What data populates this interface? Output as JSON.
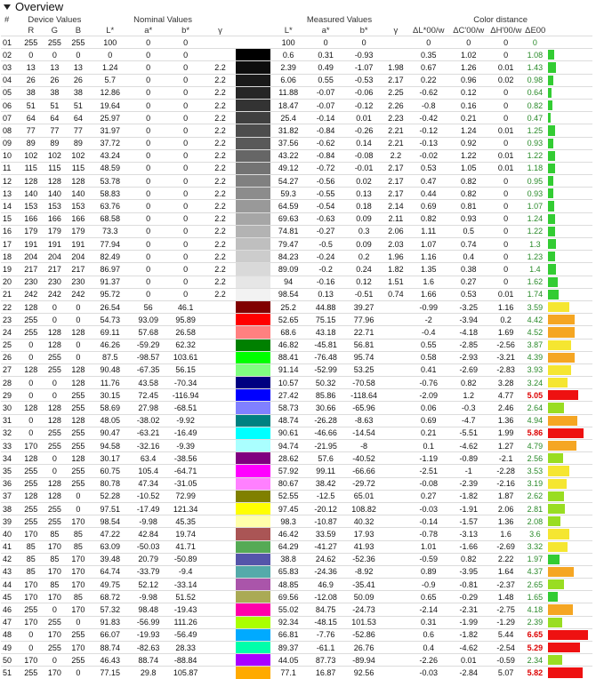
{
  "header": {
    "title": "Overview",
    "icon": "triangle-down-icon"
  },
  "group_headers": {
    "device": "Device Values",
    "nominal": "Nominal Values",
    "measured": "Measured Values",
    "distance": "Color distance"
  },
  "sub_headers": [
    "#",
    "R",
    "G",
    "B",
    "L*",
    "a*",
    "b*",
    "γ",
    "L*",
    "a*",
    "b*",
    "γ",
    "ΔL*00/w",
    "ΔC'00/w",
    "ΔH'00/w",
    "ΔE00"
  ],
  "rows": [
    {
      "n": "01",
      "r": 255,
      "g": 255,
      "b": 255,
      "nl": "100",
      "na": "0",
      "nb": "0",
      "ng": "",
      "ml": "100",
      "ma": "0",
      "mb": "0",
      "mg": "",
      "dl": "0",
      "dc": "0",
      "dh": "0",
      "de": "0",
      "sw": "#ffffff",
      "bc": "#33cc33"
    },
    {
      "n": "02",
      "r": 0,
      "g": 0,
      "b": 0,
      "nl": "0",
      "na": "0",
      "nb": "0",
      "ng": "",
      "ml": "0.6",
      "ma": "0.31",
      "mb": "-0.93",
      "mg": "",
      "dl": "0.35",
      "dc": "1.02",
      "dh": "0",
      "de": "1.08",
      "sw": "#000000",
      "bc": "#33cc33"
    },
    {
      "n": "03",
      "r": 13,
      "g": 13,
      "b": 13,
      "nl": "1.24",
      "na": "0",
      "nb": "0",
      "ng": "2.2",
      "ml": "2.39",
      "ma": "0.49",
      "mb": "-1.07",
      "mg": "1.98",
      "dl": "0.67",
      "dc": "1.26",
      "dh": "0.01",
      "de": "1.43",
      "sw": "#0d0d0d",
      "bc": "#33cc33"
    },
    {
      "n": "04",
      "r": 26,
      "g": 26,
      "b": 26,
      "nl": "5.7",
      "na": "0",
      "nb": "0",
      "ng": "2.2",
      "ml": "6.06",
      "ma": "0.55",
      "mb": "-0.53",
      "mg": "2.17",
      "dl": "0.22",
      "dc": "0.96",
      "dh": "0.02",
      "de": "0.98",
      "sw": "#1a1a1a",
      "bc": "#33cc33"
    },
    {
      "n": "05",
      "r": 38,
      "g": 38,
      "b": 38,
      "nl": "12.86",
      "na": "0",
      "nb": "0",
      "ng": "2.2",
      "ml": "11.88",
      "ma": "-0.07",
      "mb": "-0.06",
      "mg": "2.25",
      "dl": "-0.62",
      "dc": "0.12",
      "dh": "0",
      "de": "0.64",
      "sw": "#262626",
      "bc": "#33cc33"
    },
    {
      "n": "06",
      "r": 51,
      "g": 51,
      "b": 51,
      "nl": "19.64",
      "na": "0",
      "nb": "0",
      "ng": "2.2",
      "ml": "18.47",
      "ma": "-0.07",
      "mb": "-0.12",
      "mg": "2.26",
      "dl": "-0.8",
      "dc": "0.16",
      "dh": "0",
      "de": "0.82",
      "sw": "#333333",
      "bc": "#33cc33"
    },
    {
      "n": "07",
      "r": 64,
      "g": 64,
      "b": 64,
      "nl": "25.97",
      "na": "0",
      "nb": "0",
      "ng": "2.2",
      "ml": "25.4",
      "ma": "-0.14",
      "mb": "0.01",
      "mg": "2.23",
      "dl": "-0.42",
      "dc": "0.21",
      "dh": "0",
      "de": "0.47",
      "sw": "#404040",
      "bc": "#33cc33"
    },
    {
      "n": "08",
      "r": 77,
      "g": 77,
      "b": 77,
      "nl": "31.97",
      "na": "0",
      "nb": "0",
      "ng": "2.2",
      "ml": "31.82",
      "ma": "-0.84",
      "mb": "-0.26",
      "mg": "2.21",
      "dl": "-0.12",
      "dc": "1.24",
      "dh": "0.01",
      "de": "1.25",
      "sw": "#4d4d4d",
      "bc": "#33cc33"
    },
    {
      "n": "09",
      "r": 89,
      "g": 89,
      "b": 89,
      "nl": "37.72",
      "na": "0",
      "nb": "0",
      "ng": "2.2",
      "ml": "37.56",
      "ma": "-0.62",
      "mb": "0.14",
      "mg": "2.21",
      "dl": "-0.13",
      "dc": "0.92",
      "dh": "0",
      "de": "0.93",
      "sw": "#595959",
      "bc": "#33cc33"
    },
    {
      "n": "10",
      "r": 102,
      "g": 102,
      "b": 102,
      "nl": "43.24",
      "na": "0",
      "nb": "0",
      "ng": "2.2",
      "ml": "43.22",
      "ma": "-0.84",
      "mb": "-0.08",
      "mg": "2.2",
      "dl": "-0.02",
      "dc": "1.22",
      "dh": "0.01",
      "de": "1.22",
      "sw": "#666666",
      "bc": "#33cc33"
    },
    {
      "n": "11",
      "r": 115,
      "g": 115,
      "b": 115,
      "nl": "48.59",
      "na": "0",
      "nb": "0",
      "ng": "2.2",
      "ml": "49.12",
      "ma": "-0.72",
      "mb": "-0.01",
      "mg": "2.17",
      "dl": "0.53",
      "dc": "1.05",
      "dh": "0.01",
      "de": "1.18",
      "sw": "#737373",
      "bc": "#33cc33"
    },
    {
      "n": "12",
      "r": 128,
      "g": 128,
      "b": 128,
      "nl": "53.78",
      "na": "0",
      "nb": "0",
      "ng": "2.2",
      "ml": "54.27",
      "ma": "-0.56",
      "mb": "0.02",
      "mg": "2.17",
      "dl": "0.47",
      "dc": "0.82",
      "dh": "0",
      "de": "0.95",
      "sw": "#808080",
      "bc": "#33cc33"
    },
    {
      "n": "13",
      "r": 140,
      "g": 140,
      "b": 140,
      "nl": "58.83",
      "na": "0",
      "nb": "0",
      "ng": "2.2",
      "ml": "59.3",
      "ma": "-0.55",
      "mb": "0.13",
      "mg": "2.17",
      "dl": "0.44",
      "dc": "0.82",
      "dh": "0",
      "de": "0.93",
      "sw": "#8c8c8c",
      "bc": "#33cc33"
    },
    {
      "n": "14",
      "r": 153,
      "g": 153,
      "b": 153,
      "nl": "63.76",
      "na": "0",
      "nb": "0",
      "ng": "2.2",
      "ml": "64.59",
      "ma": "-0.54",
      "mb": "0.18",
      "mg": "2.14",
      "dl": "0.69",
      "dc": "0.81",
      "dh": "0",
      "de": "1.07",
      "sw": "#999999",
      "bc": "#33cc33"
    },
    {
      "n": "15",
      "r": 166,
      "g": 166,
      "b": 166,
      "nl": "68.58",
      "na": "0",
      "nb": "0",
      "ng": "2.2",
      "ml": "69.63",
      "ma": "-0.63",
      "mb": "0.09",
      "mg": "2.11",
      "dl": "0.82",
      "dc": "0.93",
      "dh": "0",
      "de": "1.24",
      "sw": "#a6a6a6",
      "bc": "#33cc33"
    },
    {
      "n": "16",
      "r": 179,
      "g": 179,
      "b": 179,
      "nl": "73.3",
      "na": "0",
      "nb": "0",
      "ng": "2.2",
      "ml": "74.81",
      "ma": "-0.27",
      "mb": "0.3",
      "mg": "2.06",
      "dl": "1.11",
      "dc": "0.5",
      "dh": "0",
      "de": "1.22",
      "sw": "#b3b3b3",
      "bc": "#33cc33"
    },
    {
      "n": "17",
      "r": 191,
      "g": 191,
      "b": 191,
      "nl": "77.94",
      "na": "0",
      "nb": "0",
      "ng": "2.2",
      "ml": "79.47",
      "ma": "-0.5",
      "mb": "0.09",
      "mg": "2.03",
      "dl": "1.07",
      "dc": "0.74",
      "dh": "0",
      "de": "1.3",
      "sw": "#bfbfbf",
      "bc": "#33cc33"
    },
    {
      "n": "18",
      "r": 204,
      "g": 204,
      "b": 204,
      "nl": "82.49",
      "na": "0",
      "nb": "0",
      "ng": "2.2",
      "ml": "84.23",
      "ma": "-0.24",
      "mb": "0.2",
      "mg": "1.96",
      "dl": "1.16",
      "dc": "0.4",
      "dh": "0",
      "de": "1.23",
      "sw": "#cccccc",
      "bc": "#33cc33"
    },
    {
      "n": "19",
      "r": 217,
      "g": 217,
      "b": 217,
      "nl": "86.97",
      "na": "0",
      "nb": "0",
      "ng": "2.2",
      "ml": "89.09",
      "ma": "-0.2",
      "mb": "0.24",
      "mg": "1.82",
      "dl": "1.35",
      "dc": "0.38",
      "dh": "0",
      "de": "1.4",
      "sw": "#d9d9d9",
      "bc": "#33cc33"
    },
    {
      "n": "20",
      "r": 230,
      "g": 230,
      "b": 230,
      "nl": "91.37",
      "na": "0",
      "nb": "0",
      "ng": "2.2",
      "ml": "94",
      "ma": "-0.16",
      "mb": "0.12",
      "mg": "1.51",
      "dl": "1.6",
      "dc": "0.27",
      "dh": "0",
      "de": "1.62",
      "sw": "#e6e6e6",
      "bc": "#33cc33"
    },
    {
      "n": "21",
      "r": 242,
      "g": 242,
      "b": 242,
      "nl": "95.72",
      "na": "0",
      "nb": "0",
      "ng": "2.2",
      "ml": "98.54",
      "ma": "0.13",
      "mb": "-0.51",
      "mg": "0.74",
      "dl": "1.66",
      "dc": "0.53",
      "dh": "0.01",
      "de": "1.74",
      "sw": "#f2f2f2",
      "bc": "#33cc33"
    },
    {
      "n": "22",
      "r": 128,
      "g": 0,
      "b": 0,
      "nl": "26.54",
      "na": "56",
      "nb": "46.1",
      "ng": "",
      "ml": "25.2",
      "ma": "44.88",
      "mb": "39.27",
      "mg": "",
      "dl": "-0.99",
      "dc": "-3.25",
      "dh": "1.16",
      "de": "3.59",
      "sw": "#800000",
      "bc": "#f5e631"
    },
    {
      "n": "23",
      "r": 255,
      "g": 0,
      "b": 0,
      "nl": "54.73",
      "na": "93.09",
      "nb": "95.89",
      "ng": "",
      "ml": "52.65",
      "ma": "75.15",
      "mb": "77.96",
      "mg": "",
      "dl": "-2",
      "dc": "-3.94",
      "dh": "0.2",
      "de": "4.42",
      "sw": "#ff0000",
      "bc": "#f5a623"
    },
    {
      "n": "24",
      "r": 255,
      "g": 128,
      "b": 128,
      "nl": "69.11",
      "na": "57.68",
      "nb": "26.58",
      "ng": "",
      "ml": "68.6",
      "ma": "43.18",
      "mb": "22.71",
      "mg": "",
      "dl": "-0.4",
      "dc": "-4.18",
      "dh": "1.69",
      "de": "4.52",
      "sw": "#ff8080",
      "bc": "#f5a623"
    },
    {
      "n": "25",
      "r": 0,
      "g": 128,
      "b": 0,
      "nl": "46.26",
      "na": "-59.29",
      "nb": "62.32",
      "ng": "",
      "ml": "46.82",
      "ma": "-45.81",
      "mb": "56.81",
      "mg": "",
      "dl": "0.55",
      "dc": "-2.85",
      "dh": "-2.56",
      "de": "3.87",
      "sw": "#008000",
      "bc": "#f5e631"
    },
    {
      "n": "26",
      "r": 0,
      "g": 255,
      "b": 0,
      "nl": "87.5",
      "na": "-98.57",
      "nb": "103.61",
      "ng": "",
      "ml": "88.41",
      "ma": "-76.48",
      "mb": "95.74",
      "mg": "",
      "dl": "0.58",
      "dc": "-2.93",
      "dh": "-3.21",
      "de": "4.39",
      "sw": "#00ff00",
      "bc": "#f5a623"
    },
    {
      "n": "27",
      "r": 128,
      "g": 255,
      "b": 128,
      "nl": "90.48",
      "na": "-67.35",
      "nb": "56.15",
      "ng": "",
      "ml": "91.14",
      "ma": "-52.99",
      "mb": "53.25",
      "mg": "",
      "dl": "0.41",
      "dc": "-2.69",
      "dh": "-2.83",
      "de": "3.93",
      "sw": "#80ff80",
      "bc": "#f5e631"
    },
    {
      "n": "28",
      "r": 0,
      "g": 0,
      "b": 128,
      "nl": "11.76",
      "na": "43.58",
      "nb": "-70.34",
      "ng": "",
      "ml": "10.57",
      "ma": "50.32",
      "mb": "-70.58",
      "mg": "",
      "dl": "-0.76",
      "dc": "0.82",
      "dh": "3.28",
      "de": "3.24",
      "sw": "#000080",
      "bc": "#f5e631"
    },
    {
      "n": "29",
      "r": 0,
      "g": 0,
      "b": 255,
      "nl": "30.15",
      "na": "72.45",
      "nb": "-116.94",
      "ng": "",
      "ml": "27.42",
      "ma": "85.86",
      "mb": "-118.64",
      "mg": "",
      "dl": "-2.09",
      "dc": "1.2",
      "dh": "4.77",
      "de": "5.05",
      "sw": "#0000ff",
      "bc": "#ee1111"
    },
    {
      "n": "30",
      "r": 128,
      "g": 128,
      "b": 255,
      "nl": "58.69",
      "na": "27.98",
      "nb": "-68.51",
      "ng": "",
      "ml": "58.73",
      "ma": "30.66",
      "mb": "-65.96",
      "mg": "",
      "dl": "0.06",
      "dc": "-0.3",
      "dh": "2.46",
      "de": "2.64",
      "sw": "#8080ff",
      "bc": "#99dd22"
    },
    {
      "n": "31",
      "r": 0,
      "g": 128,
      "b": 128,
      "nl": "48.05",
      "na": "-38.02",
      "nb": "-9.92",
      "ng": "",
      "ml": "48.74",
      "ma": "-26.28",
      "mb": "-8.63",
      "mg": "",
      "dl": "0.69",
      "dc": "-4.7",
      "dh": "1.36",
      "de": "4.94",
      "sw": "#008080",
      "bc": "#f5a623"
    },
    {
      "n": "32",
      "r": 0,
      "g": 255,
      "b": 255,
      "nl": "90.47",
      "na": "-63.21",
      "nb": "-16.49",
      "ng": "",
      "ml": "90.61",
      "ma": "-46.66",
      "mb": "-14.54",
      "mg": "",
      "dl": "0.21",
      "dc": "-5.51",
      "dh": "1.99",
      "de": "5.86",
      "sw": "#00ffff",
      "bc": "#ee1111"
    },
    {
      "n": "33",
      "r": 170,
      "g": 255,
      "b": 255,
      "nl": "94.58",
      "na": "-32.16",
      "nb": "-9.39",
      "ng": "",
      "ml": "94.74",
      "ma": "-21.95",
      "mb": "-8",
      "mg": "",
      "dl": "0.1",
      "dc": "-4.62",
      "dh": "1.27",
      "de": "4.79",
      "sw": "#aaffff",
      "bc": "#f5a623"
    },
    {
      "n": "34",
      "r": 128,
      "g": 0,
      "b": 128,
      "nl": "30.17",
      "na": "63.4",
      "nb": "-38.56",
      "ng": "",
      "ml": "28.62",
      "ma": "57.6",
      "mb": "-40.52",
      "mg": "",
      "dl": "-1.19",
      "dc": "-0.89",
      "dh": "-2.1",
      "de": "2.56",
      "sw": "#800080",
      "bc": "#99dd22"
    },
    {
      "n": "35",
      "r": 255,
      "g": 0,
      "b": 255,
      "nl": "60.75",
      "na": "105.4",
      "nb": "-64.71",
      "ng": "",
      "ml": "57.92",
      "ma": "99.11",
      "mb": "-66.66",
      "mg": "",
      "dl": "-2.51",
      "dc": "-1",
      "dh": "-2.28",
      "de": "3.53",
      "sw": "#ff00ff",
      "bc": "#f5e631"
    },
    {
      "n": "36",
      "r": 255,
      "g": 128,
      "b": 255,
      "nl": "80.78",
      "na": "47.34",
      "nb": "-31.05",
      "ng": "",
      "ml": "80.67",
      "ma": "38.42",
      "mb": "-29.72",
      "mg": "",
      "dl": "-0.08",
      "dc": "-2.39",
      "dh": "-2.16",
      "de": "3.19",
      "sw": "#ff80ff",
      "bc": "#f5e631"
    },
    {
      "n": "37",
      "r": 128,
      "g": 128,
      "b": 0,
      "nl": "52.28",
      "na": "-10.52",
      "nb": "72.99",
      "ng": "",
      "ml": "52.55",
      "ma": "-12.5",
      "mb": "65.01",
      "mg": "",
      "dl": "0.27",
      "dc": "-1.82",
      "dh": "1.87",
      "de": "2.62",
      "sw": "#808000",
      "bc": "#99dd22"
    },
    {
      "n": "38",
      "r": 255,
      "g": 255,
      "b": 0,
      "nl": "97.51",
      "na": "-17.49",
      "nb": "121.34",
      "ng": "",
      "ml": "97.45",
      "ma": "-20.12",
      "mb": "108.82",
      "mg": "",
      "dl": "-0.03",
      "dc": "-1.91",
      "dh": "2.06",
      "de": "2.81",
      "sw": "#ffff00",
      "bc": "#99dd22"
    },
    {
      "n": "39",
      "r": 255,
      "g": 255,
      "b": 170,
      "nl": "98.54",
      "na": "-9.98",
      "nb": "45.35",
      "ng": "",
      "ml": "98.3",
      "ma": "-10.87",
      "mb": "40.32",
      "mg": "",
      "dl": "-0.14",
      "dc": "-1.57",
      "dh": "1.36",
      "de": "2.08",
      "sw": "#ffffaa",
      "bc": "#99dd22"
    },
    {
      "n": "40",
      "r": 170,
      "g": 85,
      "b": 85,
      "nl": "47.22",
      "na": "42.84",
      "nb": "19.74",
      "ng": "",
      "ml": "46.42",
      "ma": "33.59",
      "mb": "17.93",
      "mg": "",
      "dl": "-0.78",
      "dc": "-3.13",
      "dh": "1.6",
      "de": "3.6",
      "sw": "#aa5555",
      "bc": "#f5e631"
    },
    {
      "n": "41",
      "r": 85,
      "g": 170,
      "b": 85,
      "nl": "63.09",
      "na": "-50.03",
      "nb": "41.71",
      "ng": "",
      "ml": "64.29",
      "ma": "-41.27",
      "mb": "41.93",
      "mg": "",
      "dl": "1.01",
      "dc": "-1.66",
      "dh": "-2.69",
      "de": "3.32",
      "sw": "#55aa55",
      "bc": "#f5e631"
    },
    {
      "n": "42",
      "r": 85,
      "g": 85,
      "b": 170,
      "nl": "39.48",
      "na": "20.79",
      "nb": "-50.89",
      "ng": "",
      "ml": "38.8",
      "ma": "24.62",
      "mb": "-52.36",
      "mg": "",
      "dl": "-0.59",
      "dc": "0.82",
      "dh": "2.22",
      "de": "1.97",
      "sw": "#5555aa",
      "bc": "#33cc33"
    },
    {
      "n": "43",
      "r": 85,
      "g": 170,
      "b": 170,
      "nl": "64.74",
      "na": "-33.79",
      "nb": "-9.4",
      "ng": "",
      "ml": "65.83",
      "ma": "-24.36",
      "mb": "-8.92",
      "mg": "",
      "dl": "0.89",
      "dc": "-3.95",
      "dh": "1.64",
      "de": "4.37",
      "sw": "#55aaaa",
      "bc": "#f5a623"
    },
    {
      "n": "44",
      "r": 170,
      "g": 85,
      "b": 170,
      "nl": "49.75",
      "na": "52.12",
      "nb": "-33.14",
      "ng": "",
      "ml": "48.85",
      "ma": "46.9",
      "mb": "-35.41",
      "mg": "",
      "dl": "-0.9",
      "dc": "-0.81",
      "dh": "-2.37",
      "de": "2.65",
      "sw": "#aa55aa",
      "bc": "#99dd22"
    },
    {
      "n": "45",
      "r": 170,
      "g": 170,
      "b": 85,
      "nl": "68.72",
      "na": "-9.98",
      "nb": "51.52",
      "ng": "",
      "ml": "69.56",
      "ma": "-12.08",
      "mb": "50.09",
      "mg": "",
      "dl": "0.65",
      "dc": "-0.29",
      "dh": "1.48",
      "de": "1.65",
      "sw": "#aaaa55",
      "bc": "#33cc33"
    },
    {
      "n": "46",
      "r": 255,
      "g": 0,
      "b": 170,
      "nl": "57.32",
      "na": "98.48",
      "nb": "-19.43",
      "ng": "",
      "ml": "55.02",
      "ma": "84.75",
      "mb": "-24.73",
      "mg": "",
      "dl": "-2.14",
      "dc": "-2.31",
      "dh": "-2.75",
      "de": "4.18",
      "sw": "#ff00aa",
      "bc": "#f5a623"
    },
    {
      "n": "47",
      "r": 170,
      "g": 255,
      "b": 0,
      "nl": "91.83",
      "na": "-56.99",
      "nb": "111.26",
      "ng": "",
      "ml": "92.34",
      "ma": "-48.15",
      "mb": "101.53",
      "mg": "",
      "dl": "0.31",
      "dc": "-1.99",
      "dh": "-1.29",
      "de": "2.39",
      "sw": "#aaff00",
      "bc": "#99dd22"
    },
    {
      "n": "48",
      "r": 0,
      "g": 170,
      "b": 255,
      "nl": "66.07",
      "na": "-19.93",
      "nb": "-56.49",
      "ng": "",
      "ml": "66.81",
      "ma": "-7.76",
      "mb": "-52.86",
      "mg": "",
      "dl": "0.6",
      "dc": "-1.82",
      "dh": "5.44",
      "de": "6.65",
      "sw": "#00aaff",
      "bc": "#ee1111"
    },
    {
      "n": "49",
      "r": 0,
      "g": 255,
      "b": 170,
      "nl": "88.74",
      "na": "-82.63",
      "nb": "28.33",
      "ng": "",
      "ml": "89.37",
      "ma": "-61.1",
      "mb": "26.76",
      "mg": "",
      "dl": "0.4",
      "dc": "-4.62",
      "dh": "-2.54",
      "de": "5.29",
      "sw": "#00ffaa",
      "bc": "#ee1111"
    },
    {
      "n": "50",
      "r": 170,
      "g": 0,
      "b": 255,
      "nl": "46.43",
      "na": "88.74",
      "nb": "-88.84",
      "ng": "",
      "ml": "44.05",
      "ma": "87.73",
      "mb": "-89.94",
      "mg": "",
      "dl": "-2.26",
      "dc": "0.01",
      "dh": "-0.59",
      "de": "2.34",
      "sw": "#aa00ff",
      "bc": "#99dd22"
    },
    {
      "n": "51",
      "r": 255,
      "g": 170,
      "b": 0,
      "nl": "77.15",
      "na": "29.8",
      "nb": "105.87",
      "ng": "",
      "ml": "77.1",
      "ma": "16.87",
      "mb": "92.56",
      "mg": "",
      "dl": "-0.03",
      "dc": "-2.84",
      "dh": "5.07",
      "de": "5.82",
      "sw": "#ffaa00",
      "bc": "#ee1111"
    }
  ]
}
